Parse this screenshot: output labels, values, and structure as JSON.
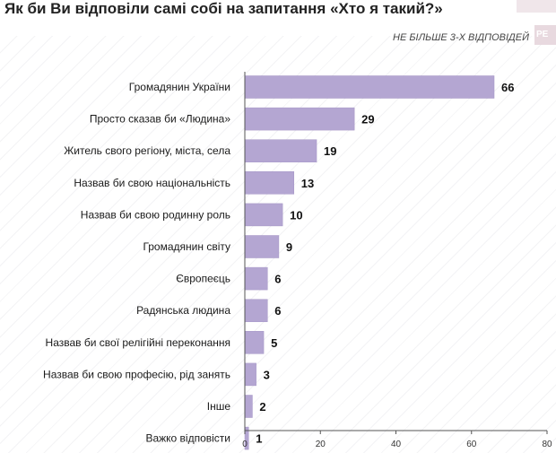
{
  "header": {
    "title": "Як би Ви відповіли самі собі на запитання «Хто я такий?»",
    "subtitle": "НЕ БІЛЬШЕ 3-Х ВІДПОВІДЕЙ",
    "logo_text": "РЕ"
  },
  "colors": {
    "bar": "#b4a6d2",
    "bar_stroke": "#a596c6",
    "axis": "#555555"
  },
  "chart_data": {
    "type": "bar",
    "orientation": "horizontal",
    "title": "Як би Ви відповіли самі собі на запитання «Хто я такий?»",
    "subtitle": "НЕ БІЛЬШЕ 3-Х ВІДПОВІДЕЙ",
    "categories": [
      "Громадянин України",
      "Просто сказав би «Людина»",
      "Житель свого регіону, міста, села",
      "Назвав би свою національність",
      "Назвав би свою родинну роль",
      "Громадянин світу",
      "Європеєць",
      "Радянська людина",
      "Назвав би свої релігійні переконання",
      "Назвав би свою професію, рід занять",
      "Інше",
      "Важко відповісти"
    ],
    "values": [
      66,
      29,
      19,
      13,
      10,
      9,
      6,
      6,
      5,
      3,
      2,
      1
    ],
    "xlim": [
      0,
      80
    ],
    "xticks": [
      0,
      20,
      40,
      60,
      80
    ],
    "xtick_labels": [
      "0",
      "20",
      "40",
      "60",
      "80"
    ],
    "xlabel": "",
    "ylabel": ""
  }
}
